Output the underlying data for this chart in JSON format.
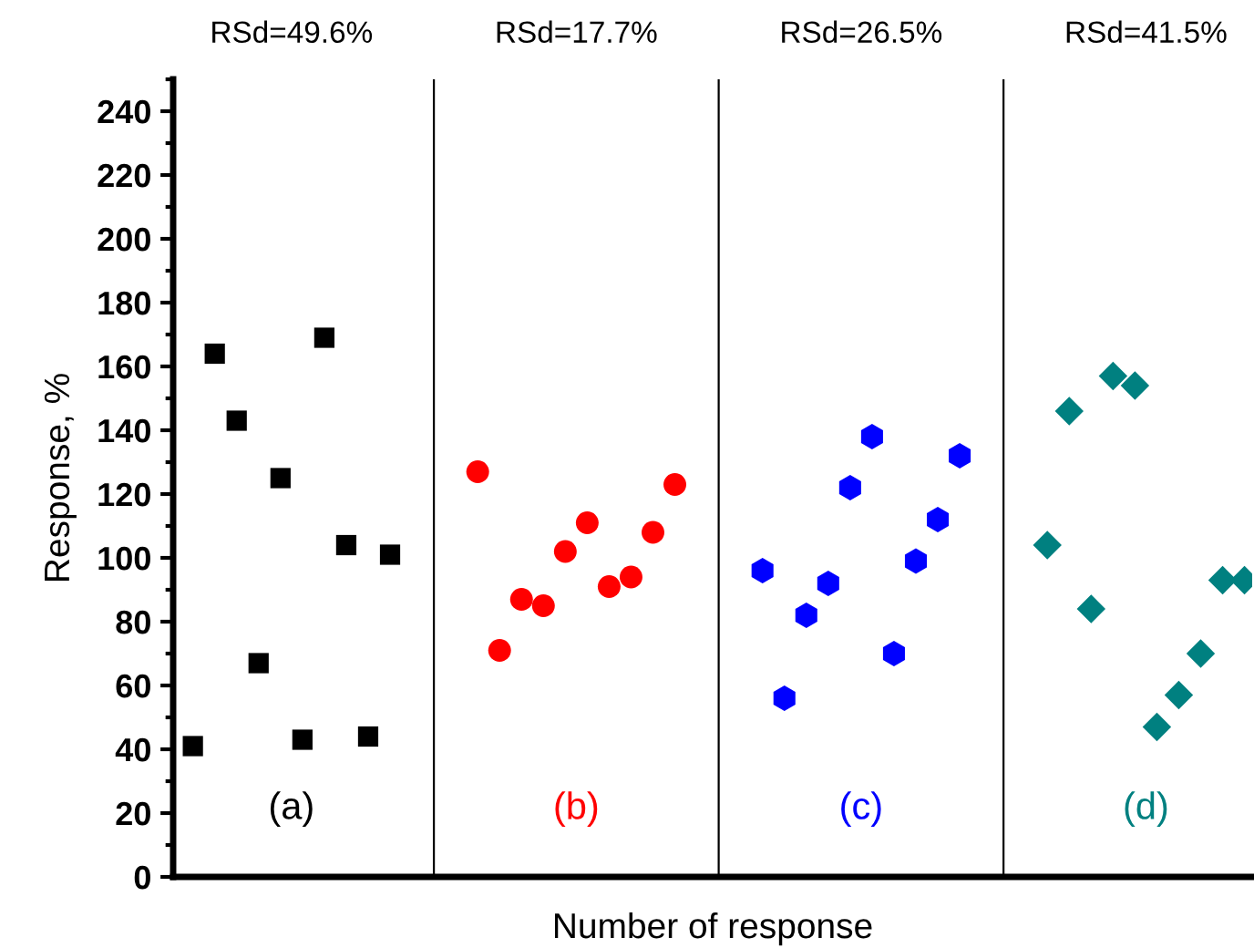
{
  "chart_data": {
    "type": "scatter",
    "ylabel": "Response, %",
    "xlabel": "Number of response",
    "categories": [
      null,
      null,
      null,
      null,
      null,
      null,
      null,
      null,
      null,
      null,
      null,
      null,
      null,
      null,
      null,
      null,
      null,
      null,
      null,
      null,
      null,
      null,
      null,
      null,
      null,
      null,
      null,
      null,
      null,
      null,
      null,
      null,
      null,
      null,
      null,
      null,
      null,
      null,
      null,
      null,
      null,
      null,
      null,
      null,
      null,
      null,
      null,
      null,
      null
    ],
    "series": [
      {
        "color": "#000000",
        "marker": "square",
        "values": [
          41,
          164,
          143,
          67,
          125,
          43,
          169,
          104,
          44,
          101,
          null,
          null,
          null,
          null,
          null,
          null,
          null,
          null,
          null,
          null,
          null,
          null,
          null,
          null,
          null,
          null,
          null,
          null,
          null,
          null,
          null,
          null,
          null,
          null,
          null,
          null,
          null,
          null,
          null,
          null,
          null,
          null,
          null,
          null,
          null,
          null,
          null,
          null,
          null
        ]
      },
      {
        "color": "#ff0000",
        "marker": "circle",
        "values": [
          null,
          null,
          null,
          null,
          null,
          null,
          null,
          null,
          null,
          null,
          null,
          null,
          null,
          127,
          71,
          87,
          85,
          102,
          111,
          91,
          94,
          108,
          123,
          null,
          null,
          null,
          null,
          null,
          null,
          null,
          null,
          null,
          null,
          null,
          null,
          null,
          null,
          null,
          null,
          null,
          null,
          null,
          null,
          null,
          null,
          null,
          null,
          null,
          null
        ]
      },
      {
        "color": "#0000ff",
        "values": [
          null,
          null,
          null,
          null,
          null,
          null,
          null,
          null,
          null,
          null,
          null,
          null,
          null,
          null,
          null,
          null,
          null,
          null,
          null,
          null,
          null,
          null,
          null,
          null,
          null,
          null,
          96,
          56,
          82,
          92,
          122,
          138,
          70,
          99,
          112,
          132,
          null,
          null,
          null,
          null,
          null,
          null,
          null,
          null,
          null,
          null,
          null,
          null,
          null
        ]
      },
      {
        "color": "#008080",
        "marker": "diamond",
        "values": [
          null,
          null,
          null,
          null,
          null,
          null,
          null,
          null,
          null,
          null,
          null,
          null,
          null,
          null,
          null,
          null,
          null,
          null,
          null,
          null,
          null,
          null,
          null,
          null,
          null,
          null,
          null,
          null,
          null,
          null,
          null,
          null,
          null,
          null,
          null,
          null,
          null,
          null,
          null,
          104,
          146,
          84,
          157,
          154,
          47,
          57,
          70,
          93,
          93
        ]
      }
    ],
    "annotations": [
      "RSd=49.6%",
      "RSd=17.7%",
      "RSd=26.5%",
      "RSd=41.5%",
      "(a)",
      "(b)",
      "(c)",
      "(d)"
    ],
    "ylim": [
      0,
      250
    ],
    "yticks": [
      0,
      20,
      40,
      60,
      80,
      100,
      120,
      140,
      160,
      180,
      200,
      220,
      240
    ],
    "tick_labels": "y",
    "grid": false
  }
}
